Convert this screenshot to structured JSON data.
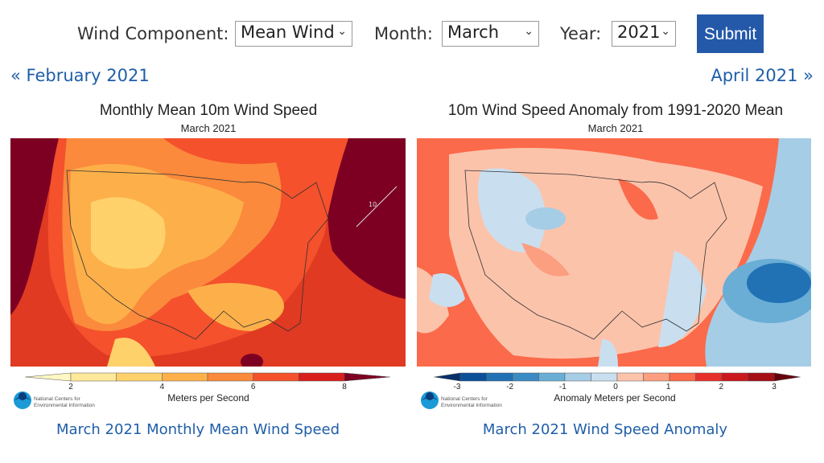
{
  "form": {
    "wind_component_label": "Wind Component:",
    "wind_component_value": "Mean Wind",
    "month_label": "Month:",
    "month_value": "March",
    "year_label": "Year:",
    "year_value": "2021",
    "submit_label": "Submit",
    "accent": "#2459aa"
  },
  "nav": {
    "prev": "« February 2021",
    "next": "April 2021 »"
  },
  "left_map": {
    "title": "Monthly Mean 10m Wind Speed",
    "subtitle": "March 2021",
    "contour_label": "10",
    "colorbar_ticks": [
      "2",
      "4",
      "6",
      "8"
    ],
    "colorbar_colors": [
      "#fff7c4",
      "#fee99a",
      "#fed16b",
      "#fdb04a",
      "#fb8a3c",
      "#f4512c",
      "#d81f1c",
      "#7d0022"
    ],
    "unit": "Meters per Second",
    "org_line1": "National Centers for",
    "org_line2": "Environmental Information",
    "caption": "March 2021 Monthly Mean Wind Speed"
  },
  "right_map": {
    "title": "10m Wind Speed Anomaly from 1991-2020 Mean",
    "subtitle": "March 2021",
    "colorbar_ticks": [
      "-3",
      "-2",
      "-1",
      "0",
      "1",
      "2",
      "3"
    ],
    "colorbar_colors": [
      "#08306b",
      "#0b4f99",
      "#2171b5",
      "#3a8bc4",
      "#6aaed6",
      "#a6cde6",
      "#c9dff0",
      "#fcc3ab",
      "#fc9e80",
      "#fb6a4a",
      "#e8302a",
      "#cb181d",
      "#a50f15",
      "#67000d"
    ],
    "unit": "Anomaly Meters per Second",
    "org_line1": "National Centers for",
    "org_line2": "Environmental Information",
    "caption": "March 2021 Wind Speed Anomaly"
  }
}
